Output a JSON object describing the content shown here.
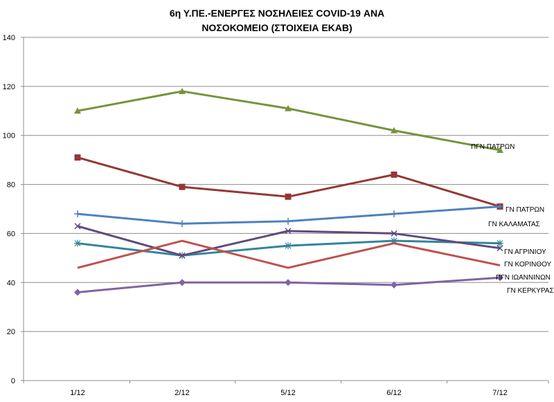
{
  "chart_data": {
    "type": "line",
    "title_lines": [
      "6η Υ.ΠΕ.-ΕΝΕΡΓΕΣ ΝΟΣΗΛΕΙΕΣ COVID-19 ΑΝΑ",
      "ΝΟΣΟΚΟΜΕΙΟ (ΣΤΟΙΧΕΙΑ ΕΚΑΒ)"
    ],
    "categories": [
      "1/12",
      "2/12",
      "5/12",
      "6/12",
      "7/12"
    ],
    "ylim": [
      0,
      140
    ],
    "yticks": [
      "0",
      "20",
      "40",
      "60",
      "80",
      "100",
      "120",
      "140"
    ],
    "grid": true,
    "legend": "labels at line ends",
    "series": [
      {
        "name": "ΠΓΝ ΠΑΤΡΩΝ",
        "color": "#77933C",
        "marker": "triangle",
        "values": [
          110,
          118,
          111,
          102,
          94
        ]
      },
      {
        "name": "ΓΝ ΠΑΤΡΩΝ",
        "color": "#953735",
        "marker": "square",
        "values": [
          91,
          79,
          75,
          84,
          71
        ]
      },
      {
        "name": "ΓΝ ΚΑΛΑΜΑΤΑΣ",
        "color": "#4F81BD",
        "marker": "plus",
        "values": [
          68,
          64,
          65,
          68,
          71
        ]
      },
      {
        "name": "ΓΝ ΑΓΡΙΝΙΟΥ",
        "color": "#31859C",
        "marker": "asterisk",
        "values": [
          56,
          51,
          55,
          57,
          56
        ]
      },
      {
        "name": "ΓΝ ΚΟΡΙΝΘΟΥ",
        "color": "#604A7B",
        "marker": "x",
        "values": [
          63,
          51,
          61,
          60,
          54
        ]
      },
      {
        "name": "ΠΓΝ ΙΩΑΝΝΙΝΩΝ",
        "color": "#C0504D",
        "marker": "none",
        "values": [
          46,
          57,
          46,
          56,
          47
        ]
      },
      {
        "name": "ΓΝ ΚΕΡΚΥΡΑΣ",
        "color": "#8064A2",
        "marker": "diamond",
        "values": [
          36,
          40,
          40,
          39,
          42
        ]
      }
    ]
  }
}
